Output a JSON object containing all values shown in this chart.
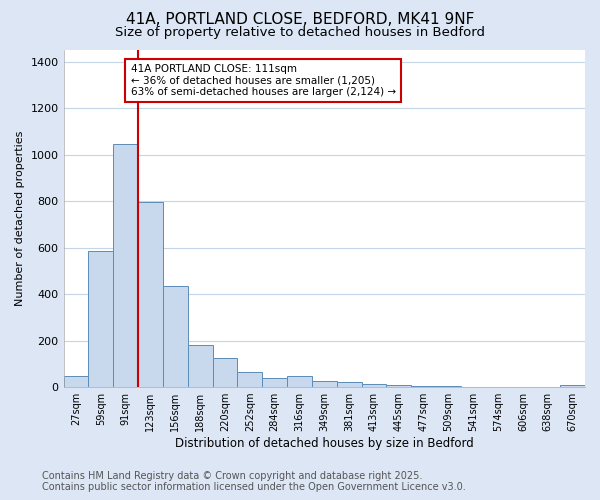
{
  "title_line1": "41A, PORTLAND CLOSE, BEDFORD, MK41 9NF",
  "title_line2": "Size of property relative to detached houses in Bedford",
  "xlabel": "Distribution of detached houses by size in Bedford",
  "ylabel": "Number of detached properties",
  "categories": [
    "27sqm",
    "59sqm",
    "91sqm",
    "123sqm",
    "156sqm",
    "188sqm",
    "220sqm",
    "252sqm",
    "284sqm",
    "316sqm",
    "349sqm",
    "381sqm",
    "413sqm",
    "445sqm",
    "477sqm",
    "509sqm",
    "541sqm",
    "574sqm",
    "606sqm",
    "638sqm",
    "670sqm"
  ],
  "values": [
    47,
    585,
    1045,
    795,
    433,
    180,
    125,
    65,
    38,
    47,
    25,
    22,
    14,
    8,
    5,
    3,
    2,
    1,
    1,
    1,
    10
  ],
  "bar_color": "#c9d9ed",
  "bar_edge_color": "#5b8db8",
  "red_line_x": 2.5,
  "red_line_label": "41A PORTLAND CLOSE: 111sqm",
  "annotation_line2": "← 36% of detached houses are smaller (1,205)",
  "annotation_line3": "63% of semi-detached houses are larger (2,124) →",
  "annotation_box_color": "#ffffff",
  "annotation_box_edge": "#cc0000",
  "ylim": [
    0,
    1450
  ],
  "yticks": [
    0,
    200,
    400,
    600,
    800,
    1000,
    1200,
    1400
  ],
  "figure_background": "#dce6f5",
  "plot_background": "#ffffff",
  "grid_color": "#c5d5e8",
  "footer_line1": "Contains HM Land Registry data © Crown copyright and database right 2025.",
  "footer_line2": "Contains public sector information licensed under the Open Government Licence v3.0.",
  "title_fontsize": 11,
  "subtitle_fontsize": 9.5,
  "footer_fontsize": 7.0,
  "footer_color": "#555555"
}
